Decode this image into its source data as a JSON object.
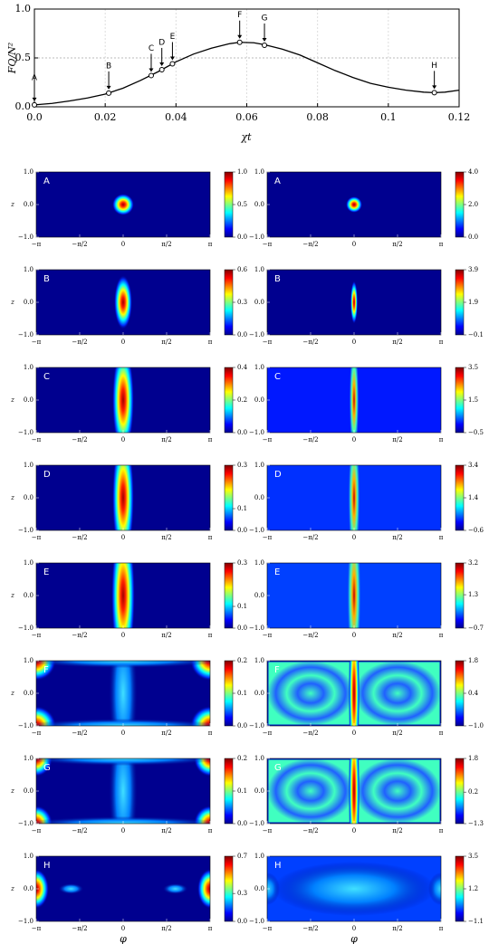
{
  "chart_data": [
    {
      "type": "line",
      "xlabel": "χt",
      "ylabel": "FQ/N²",
      "x": [
        0,
        0.005,
        0.01,
        0.015,
        0.02,
        0.025,
        0.03,
        0.035,
        0.04,
        0.045,
        0.05,
        0.055,
        0.058,
        0.062,
        0.065,
        0.07,
        0.075,
        0.08,
        0.085,
        0.09,
        0.095,
        0.1,
        0.105,
        0.11,
        0.113,
        0.116,
        0.12
      ],
      "values": [
        0.02,
        0.035,
        0.06,
        0.09,
        0.13,
        0.19,
        0.27,
        0.36,
        0.46,
        0.54,
        0.6,
        0.645,
        0.66,
        0.655,
        0.635,
        0.59,
        0.53,
        0.45,
        0.37,
        0.3,
        0.24,
        0.2,
        0.17,
        0.15,
        0.145,
        0.15,
        0.17
      ],
      "color": "#000000",
      "markers": {
        "labels": [
          "A",
          "B",
          "C",
          "D",
          "E",
          "F",
          "G",
          "H"
        ],
        "x": [
          0,
          0.021,
          0.033,
          0.036,
          0.039,
          0.058,
          0.065,
          0.113
        ],
        "y": [
          0.02,
          0.14,
          0.32,
          0.38,
          0.44,
          0.66,
          0.63,
          0.145
        ]
      },
      "xlim": [
        0,
        0.12
      ],
      "ylim": [
        0,
        1
      ],
      "xticks": [
        {
          "value": 0,
          "label": "0.0"
        },
        0.02,
        0.04,
        0.06,
        0.08,
        0.1,
        0.12
      ],
      "yticks": [
        {
          "value": 0,
          "label": "0.0"
        },
        {
          "value": 0.5,
          "label": "0.5"
        },
        {
          "value": 1,
          "label": "1.0"
        }
      ],
      "grid": true
    },
    {
      "type": "heatmap_grid",
      "xlabel": "φ",
      "ylabel": "z",
      "xlim": [
        -3.14159,
        3.14159
      ],
      "ylim": [
        -1,
        1
      ],
      "xticks": [
        {
          "value": -3.14159,
          "label": "−π"
        },
        {
          "value": -1.5708,
          "label": "−π/2"
        },
        0,
        {
          "value": 1.5708,
          "label": "π/2"
        },
        {
          "value": 3.14159,
          "label": "π"
        }
      ],
      "yticks": [
        {
          "value": 1,
          "label": "1.0"
        },
        {
          "value": 0,
          "label": "0.0"
        },
        {
          "value": -1,
          "label": "−1.0"
        }
      ],
      "rows": [
        {
          "label": "A",
          "left_cticks": [
            {
              "value": 1,
              "label": "1.0"
            },
            {
              "value": 0.5,
              "label": "0.5"
            },
            {
              "value": 0,
              "label": "0.0"
            }
          ],
          "right_cticks": [
            {
              "value": 4,
              "label": "4.0"
            },
            {
              "value": 2,
              "label": "2.0"
            },
            {
              "value": 0,
              "label": "0.0"
            }
          ]
        },
        {
          "label": "B",
          "left_cticks": [
            0.6,
            0.3,
            {
              "value": 0,
              "label": "0.0"
            }
          ],
          "right_cticks": [
            3.9,
            1.9,
            {
              "value": -0.1,
              "label": "−0.1"
            }
          ]
        },
        {
          "label": "C",
          "left_cticks": [
            0.4,
            0.2,
            {
              "value": 0,
              "label": "0.0"
            }
          ],
          "right_cticks": [
            3.5,
            1.5,
            {
              "value": -0.5,
              "label": "−0.5"
            }
          ]
        },
        {
          "label": "D",
          "left_cticks": [
            0.3,
            0.1,
            {
              "value": 0,
              "label": "0.0"
            }
          ],
          "right_cticks": [
            3.4,
            1.4,
            {
              "value": -0.6,
              "label": "−0.6"
            }
          ]
        },
        {
          "label": "E",
          "left_cticks": [
            0.3,
            0.1,
            {
              "value": 0,
              "label": "0.0"
            }
          ],
          "right_cticks": [
            3.2,
            1.3,
            {
              "value": -0.7,
              "label": "−0.7"
            }
          ]
        },
        {
          "label": "F",
          "left_cticks": [
            0.2,
            0.1,
            {
              "value": 0,
              "label": "0.0"
            }
          ],
          "right_cticks": [
            1.8,
            0.4,
            {
              "value": -1,
              "label": "−1.0"
            }
          ]
        },
        {
          "label": "G",
          "left_cticks": [
            0.2,
            0.1,
            {
              "value": 0,
              "label": "0.0"
            }
          ],
          "right_cticks": [
            1.8,
            0.2,
            {
              "value": -1.3,
              "label": "−1.3"
            }
          ]
        },
        {
          "label": "H",
          "left_cticks": [
            0.7,
            0.3,
            {
              "value": 0,
              "label": "0.0"
            }
          ],
          "right_cticks": [
            3.5,
            1.2,
            {
              "value": -1.1,
              "label": "−1.1"
            }
          ]
        }
      ]
    }
  ]
}
